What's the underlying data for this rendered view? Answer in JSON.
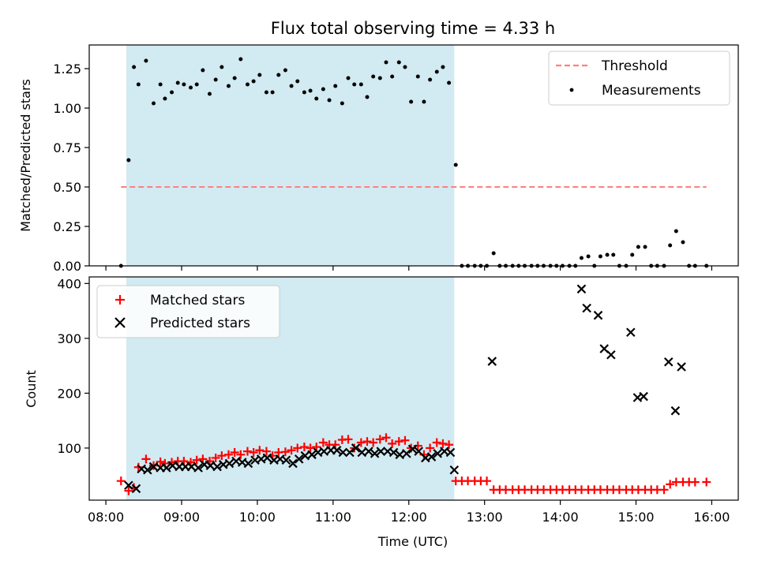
{
  "title": "Flux total observing time = 4.33 h",
  "xlabel": "Time (UTC)",
  "xticks": [
    "08:00",
    "09:00",
    "10:00",
    "11:00",
    "12:00",
    "13:00",
    "14:00",
    "15:00",
    "16:00"
  ],
  "colors": {
    "shade": "#add8e6",
    "threshold": "#ff7f7f",
    "measurement": "#000000",
    "matched": "#ff0000",
    "predicted": "#000000"
  },
  "chart_data": [
    {
      "type": "scatter",
      "name": "ratio-panel",
      "ylabel": "Matched/Predicted stars",
      "xlim": [
        7.78,
        16.35
      ],
      "ylim": [
        0,
        1.4
      ],
      "yticks": [
        "0.00",
        "0.25",
        "0.50",
        "0.75",
        "1.00",
        "1.25"
      ],
      "shaded_region": [
        8.27,
        12.6
      ],
      "threshold": {
        "name": "Threshold",
        "value": 0.5,
        "x_range": [
          8.2,
          15.93
        ]
      },
      "legend": {
        "position": "top-right",
        "entries": [
          "Threshold",
          "Measurements"
        ]
      },
      "series": [
        {
          "name": "Measurements",
          "x": [
            8.2,
            8.3,
            8.37,
            8.43,
            8.53,
            8.63,
            8.72,
            8.78,
            8.87,
            8.95,
            9.03,
            9.12,
            9.2,
            9.28,
            9.37,
            9.45,
            9.53,
            9.62,
            9.7,
            9.78,
            9.87,
            9.95,
            10.03,
            10.12,
            10.2,
            10.28,
            10.37,
            10.45,
            10.53,
            10.62,
            10.7,
            10.78,
            10.87,
            10.95,
            11.03,
            11.12,
            11.2,
            11.28,
            11.37,
            11.45,
            11.53,
            11.62,
            11.7,
            11.78,
            11.87,
            11.95,
            12.03,
            12.12,
            12.2,
            12.28,
            12.37,
            12.45,
            12.53,
            12.62,
            12.7,
            12.78,
            12.87,
            12.95,
            13.03,
            13.12,
            13.2,
            13.28,
            13.37,
            13.45,
            13.53,
            13.62,
            13.7,
            13.78,
            13.87,
            13.95,
            14.03,
            14.12,
            14.2,
            14.28,
            14.37,
            14.45,
            14.53,
            14.62,
            14.7,
            14.78,
            14.87,
            14.95,
            15.03,
            15.12,
            15.2,
            15.28,
            15.37,
            15.45,
            15.53,
            15.62,
            15.7,
            15.78,
            15.93
          ],
          "y": [
            0.0,
            0.67,
            1.26,
            1.15,
            1.3,
            1.03,
            1.15,
            1.06,
            1.1,
            1.16,
            1.15,
            1.13,
            1.15,
            1.24,
            1.09,
            1.18,
            1.26,
            1.14,
            1.19,
            1.31,
            1.15,
            1.17,
            1.21,
            1.1,
            1.1,
            1.21,
            1.24,
            1.14,
            1.17,
            1.1,
            1.11,
            1.06,
            1.12,
            1.05,
            1.14,
            1.03,
            1.19,
            1.15,
            1.15,
            1.07,
            1.2,
            1.19,
            1.29,
            1.2,
            1.29,
            1.26,
            1.04,
            1.2,
            1.04,
            1.18,
            1.23,
            1.26,
            1.16,
            0.64,
            0.0,
            0.0,
            0.0,
            0.0,
            0.0,
            0.08,
            0.0,
            0.0,
            0.0,
            0.0,
            0.0,
            0.0,
            0.0,
            0.0,
            0.0,
            0.0,
            0.0,
            0.0,
            0.0,
            0.05,
            0.06,
            0.0,
            0.06,
            0.07,
            0.07,
            0.0,
            0.0,
            0.07,
            0.12,
            0.12,
            0.0,
            0.0,
            0.0,
            0.13,
            0.22,
            0.15,
            0.0,
            0.0,
            0.0
          ]
        }
      ]
    },
    {
      "type": "scatter",
      "name": "count-panel",
      "ylabel": "Count",
      "xlim": [
        7.78,
        16.35
      ],
      "ylim": [
        5,
        412
      ],
      "yticks": [
        "100",
        "200",
        "300",
        "400"
      ],
      "shaded_region": [
        8.27,
        12.6
      ],
      "legend": {
        "position": "top-left",
        "entries": [
          "Matched stars",
          "Predicted stars"
        ]
      },
      "series": [
        {
          "name": "Matched stars",
          "x": [
            8.2,
            8.3,
            8.37,
            8.43,
            8.53,
            8.63,
            8.72,
            8.78,
            8.87,
            8.95,
            9.03,
            9.12,
            9.2,
            9.28,
            9.37,
            9.45,
            9.53,
            9.62,
            9.7,
            9.78,
            9.87,
            9.95,
            10.03,
            10.12,
            10.2,
            10.28,
            10.37,
            10.45,
            10.53,
            10.62,
            10.7,
            10.78,
            10.87,
            10.95,
            11.03,
            11.12,
            11.2,
            11.28,
            11.37,
            11.45,
            11.53,
            11.62,
            11.7,
            11.78,
            11.87,
            11.95,
            12.03,
            12.12,
            12.2,
            12.28,
            12.37,
            12.45,
            12.53,
            12.62,
            12.7,
            12.78,
            12.87,
            12.95,
            13.03,
            13.12,
            13.2,
            13.28,
            13.37,
            13.45,
            13.53,
            13.62,
            13.7,
            13.78,
            13.87,
            13.95,
            14.03,
            14.12,
            14.2,
            14.28,
            14.37,
            14.45,
            14.53,
            14.62,
            14.7,
            14.78,
            14.87,
            14.95,
            15.03,
            15.12,
            15.2,
            15.28,
            15.37,
            15.45,
            15.53,
            15.62,
            15.7,
            15.78,
            15.93
          ],
          "y": [
            40,
            22,
            28,
            65,
            80,
            68,
            75,
            72,
            74,
            76,
            76,
            74,
            78,
            80,
            76,
            82,
            86,
            88,
            92,
            88,
            94,
            92,
            96,
            94,
            86,
            92,
            93,
            96,
            100,
            102,
            100,
            102,
            110,
            106,
            106,
            115,
            116,
            100,
            110,
            112,
            110,
            116,
            119,
            108,
            112,
            114,
            100,
            104,
            88,
            100,
            110,
            108,
            106,
            40,
            40,
            40,
            40,
            40,
            40,
            24,
            24,
            24,
            24,
            24,
            24,
            24,
            24,
            24,
            24,
            24,
            24,
            24,
            24,
            24,
            24,
            24,
            24,
            24,
            24,
            24,
            24,
            24,
            24,
            24,
            24,
            24,
            24,
            34,
            38,
            38,
            38,
            38,
            38
          ]
        },
        {
          "name": "Predicted stars",
          "x": [
            8.3,
            8.4,
            8.47,
            8.55,
            8.63,
            8.72,
            8.8,
            8.88,
            8.97,
            9.05,
            9.13,
            9.22,
            9.3,
            9.38,
            9.47,
            9.55,
            9.63,
            9.72,
            9.8,
            9.88,
            9.97,
            10.05,
            10.13,
            10.22,
            10.3,
            10.38,
            10.47,
            10.55,
            10.63,
            10.72,
            10.8,
            10.88,
            10.97,
            11.05,
            11.13,
            11.22,
            11.3,
            11.38,
            11.47,
            11.55,
            11.63,
            11.72,
            11.8,
            11.88,
            11.97,
            12.05,
            12.13,
            12.22,
            12.3,
            12.38,
            12.47,
            12.55,
            12.6,
            13.1,
            14.28,
            14.35,
            14.5,
            14.58,
            14.67,
            14.93,
            15.02,
            15.1,
            15.43,
            15.52,
            15.6
          ],
          "y": [
            32,
            26,
            62,
            60,
            66,
            64,
            64,
            68,
            66,
            66,
            66,
            64,
            70,
            68,
            66,
            70,
            72,
            76,
            74,
            72,
            78,
            80,
            82,
            78,
            80,
            78,
            72,
            80,
            86,
            88,
            92,
            94,
            96,
            96,
            92,
            92,
            100,
            92,
            94,
            90,
            94,
            94,
            92,
            88,
            90,
            98,
            94,
            82,
            84,
            90,
            94,
            92,
            60,
            258,
            390,
            355,
            342,
            281,
            270,
            311,
            192,
            194,
            257,
            168,
            248
          ]
        }
      ]
    }
  ]
}
